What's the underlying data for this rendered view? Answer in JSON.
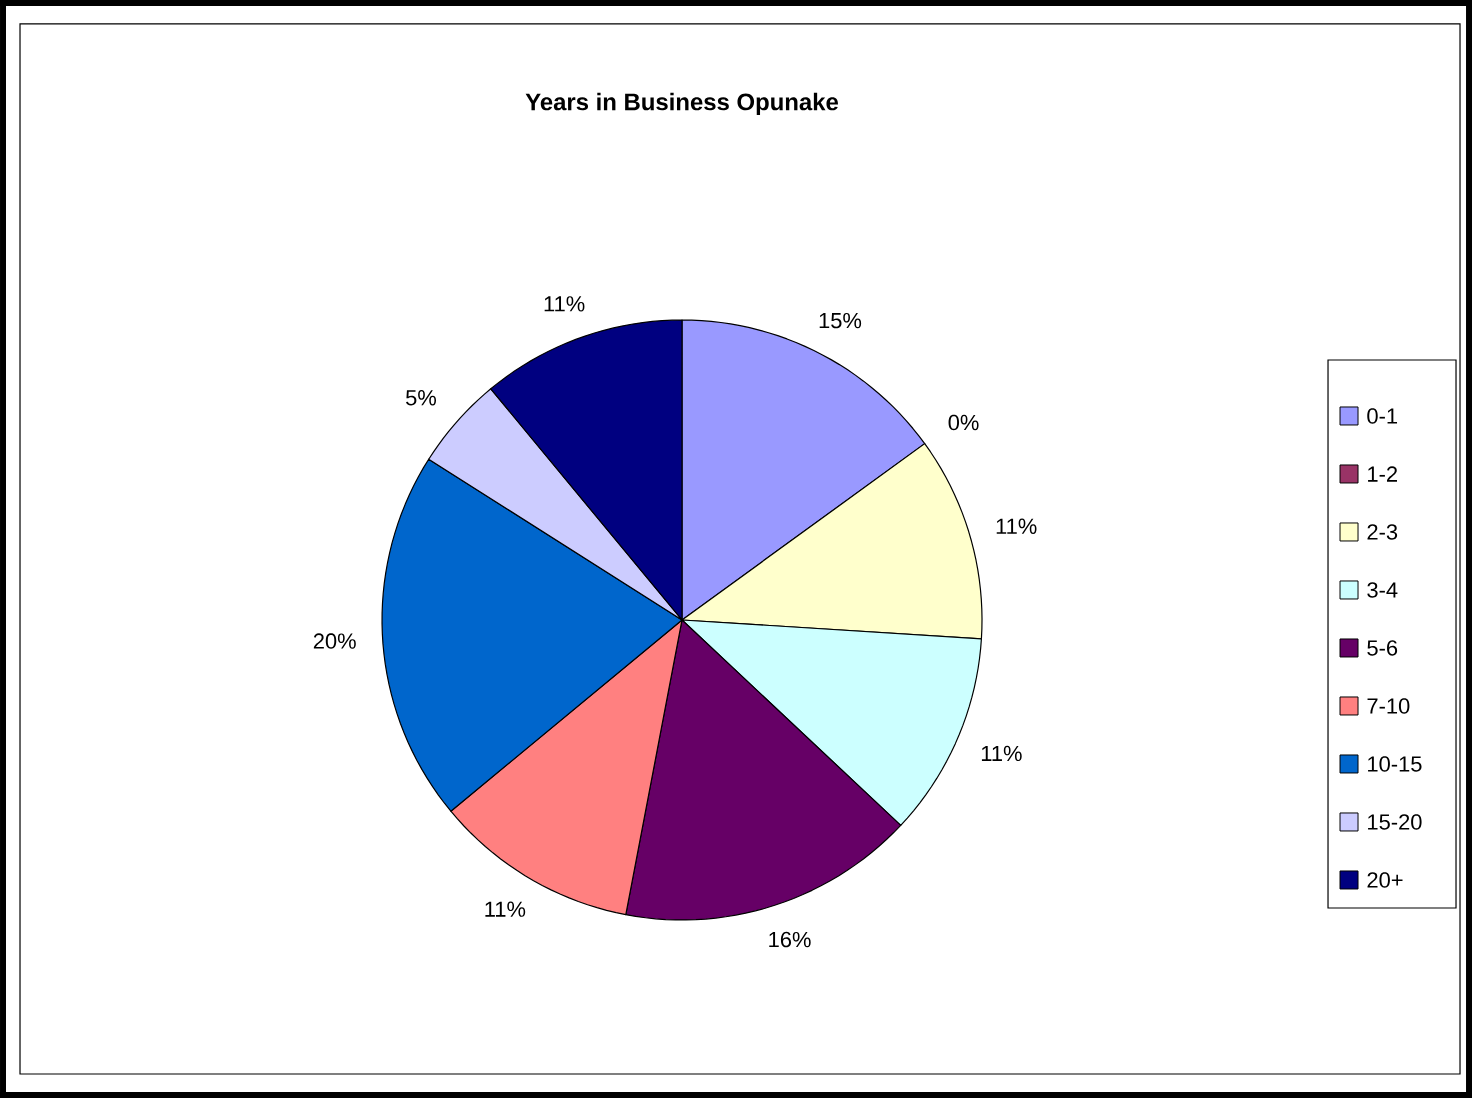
{
  "chart_data": {
    "type": "pie",
    "title": "Years in Business Opunake",
    "categories": [
      "0-1",
      "1-2",
      "2-3",
      "3-4",
      "5-6",
      "7-10",
      "10-15",
      "15-20",
      "20+"
    ],
    "values": [
      15,
      0,
      11,
      11,
      16,
      11,
      20,
      5,
      11
    ],
    "value_labels": [
      "15%",
      "0%",
      "11%",
      "11%",
      "16%",
      "11%",
      "20%",
      "5%",
      "11%"
    ],
    "colors": [
      "#9999ff",
      "#993366",
      "#ffffcc",
      "#ccffff",
      "#660066",
      "#ff8080",
      "#0066cc",
      "#ccccff",
      "#000080"
    ],
    "legend": "right"
  }
}
